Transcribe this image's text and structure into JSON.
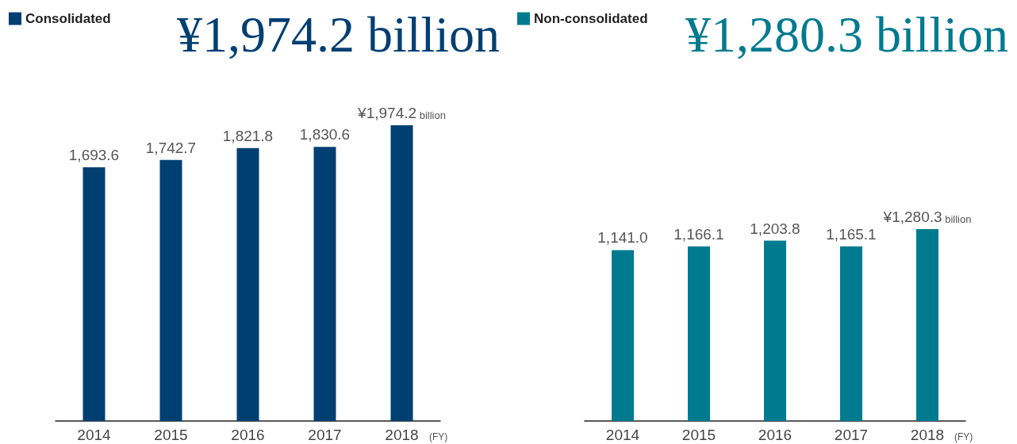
{
  "chart_data": [
    {
      "type": "bar",
      "subtitle": "¥1,974.2 billion",
      "xlabel": "(FY)",
      "categories": [
        "2014",
        "2015",
        "2016",
        "2017",
        "2018"
      ],
      "legend": "top left",
      "grid": false,
      "series": [
        {
          "name": "Consolidated",
          "color": "#003f72",
          "values": [
            1693.6,
            1742.7,
            1821.8,
            1830.6,
            1974.2
          ],
          "value_labels": [
            "1,693.6",
            "1,742.7",
            "1,821.8",
            "1,830.6",
            "¥1,974.2 billion"
          ]
        }
      ]
    },
    {
      "type": "bar",
      "subtitle": "¥1,280.3 billion",
      "xlabel": "(FY)",
      "categories": [
        "2014",
        "2015",
        "2016",
        "2017",
        "2018"
      ],
      "legend": "top left",
      "grid": false,
      "series": [
        {
          "name": "Non-consolidated",
          "color": "#007a8f",
          "values": [
            1141.0,
            1166.1,
            1203.8,
            1165.1,
            1280.3
          ],
          "value_labels": [
            "1,141.0",
            "1,166.1",
            "1,203.8",
            "1,165.1",
            "¥1,280.3 billion"
          ]
        }
      ]
    }
  ]
}
